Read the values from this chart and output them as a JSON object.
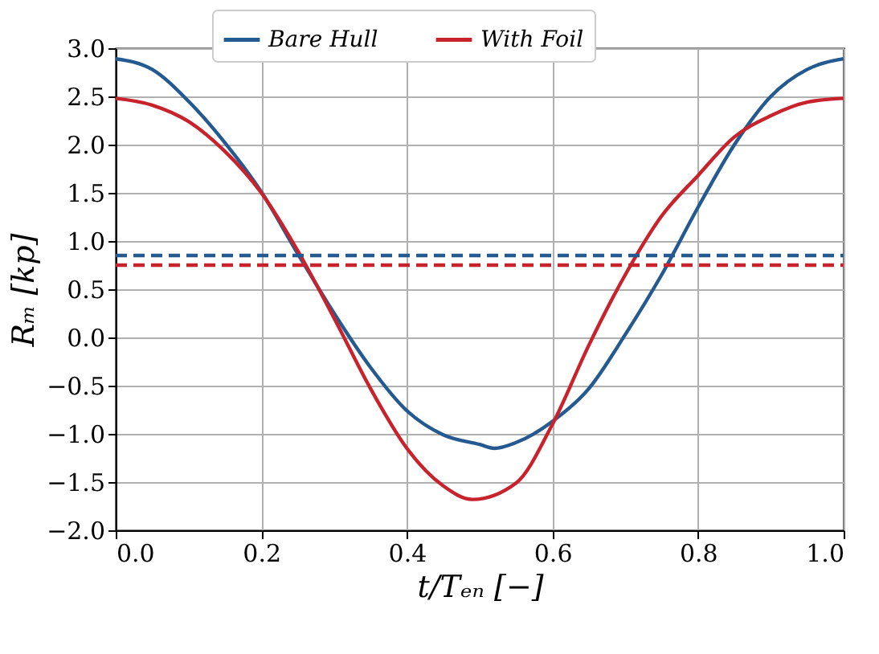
{
  "chart_data": {
    "type": "line",
    "xlabel": "t/Tₑₙ [−]",
    "ylabel": "Rₘ [kp]",
    "xlim": [
      0.0,
      1.0
    ],
    "xticks": [
      {
        "value": 0,
        "label": "0.0"
      },
      0.2,
      0.4,
      0.6,
      0.8,
      {
        "value": 1,
        "label": "1.0"
      }
    ],
    "ylim": [
      -2.0,
      3.0
    ],
    "yticks": [
      {
        "value": -2,
        "label": "−2.0"
      },
      {
        "value": -1.5,
        "label": "−1.5"
      },
      {
        "value": -1,
        "label": "−1.0"
      },
      {
        "value": -0.5,
        "label": "−0.5"
      },
      {
        "value": 0,
        "label": "0.0"
      },
      0.5,
      {
        "value": 1,
        "label": "1.0"
      },
      1.5,
      {
        "value": 2,
        "label": "2.0"
      },
      2.5,
      {
        "value": 3,
        "label": "3.0"
      }
    ],
    "grid": true,
    "legend": "top",
    "marker": "none",
    "series": [
      {
        "name": "Bare Hull",
        "color": "#245a8f",
        "line_style": "solid",
        "x": [
          0,
          0.05,
          0.1,
          0.15,
          0.2,
          0.25,
          0.3,
          0.35,
          0.4,
          0.45,
          0.5,
          0.52,
          0.55,
          0.6,
          0.65,
          0.7,
          0.75,
          0.8,
          0.85,
          0.9,
          0.95,
          1.0
        ],
        "values": [
          2.89,
          2.78,
          2.45,
          2.02,
          1.51,
          0.87,
          0.25,
          -0.31,
          -0.76,
          -1.01,
          -1.11,
          -1.15,
          -1.09,
          -0.87,
          -0.53,
          0.03,
          0.65,
          1.35,
          2.0,
          2.5,
          2.78,
          2.89
        ]
      },
      {
        "name": "With Foil",
        "color": "#c8232c",
        "line_style": "solid",
        "x": [
          0,
          0.05,
          0.1,
          0.15,
          0.2,
          0.25,
          0.3,
          0.35,
          0.4,
          0.45,
          0.49,
          0.55,
          0.6,
          0.65,
          0.7,
          0.75,
          0.8,
          0.85,
          0.9,
          0.95,
          1.0
        ],
        "values": [
          2.48,
          2.41,
          2.24,
          1.93,
          1.5,
          0.9,
          0.2,
          -0.53,
          -1.15,
          -1.54,
          -1.68,
          -1.51,
          -0.9,
          -0.08,
          0.65,
          1.26,
          1.68,
          2.08,
          2.3,
          2.44,
          2.48
        ]
      },
      {
        "color": "#245a8f",
        "line_style": "dashed",
        "x": [
          0,
          1.0
        ],
        "values": [
          0.85,
          0.85
        ]
      },
      {
        "color": "#c8232c",
        "line_style": "dashed",
        "x": [
          0,
          1.0
        ],
        "values": [
          0.75,
          0.75
        ]
      }
    ]
  }
}
